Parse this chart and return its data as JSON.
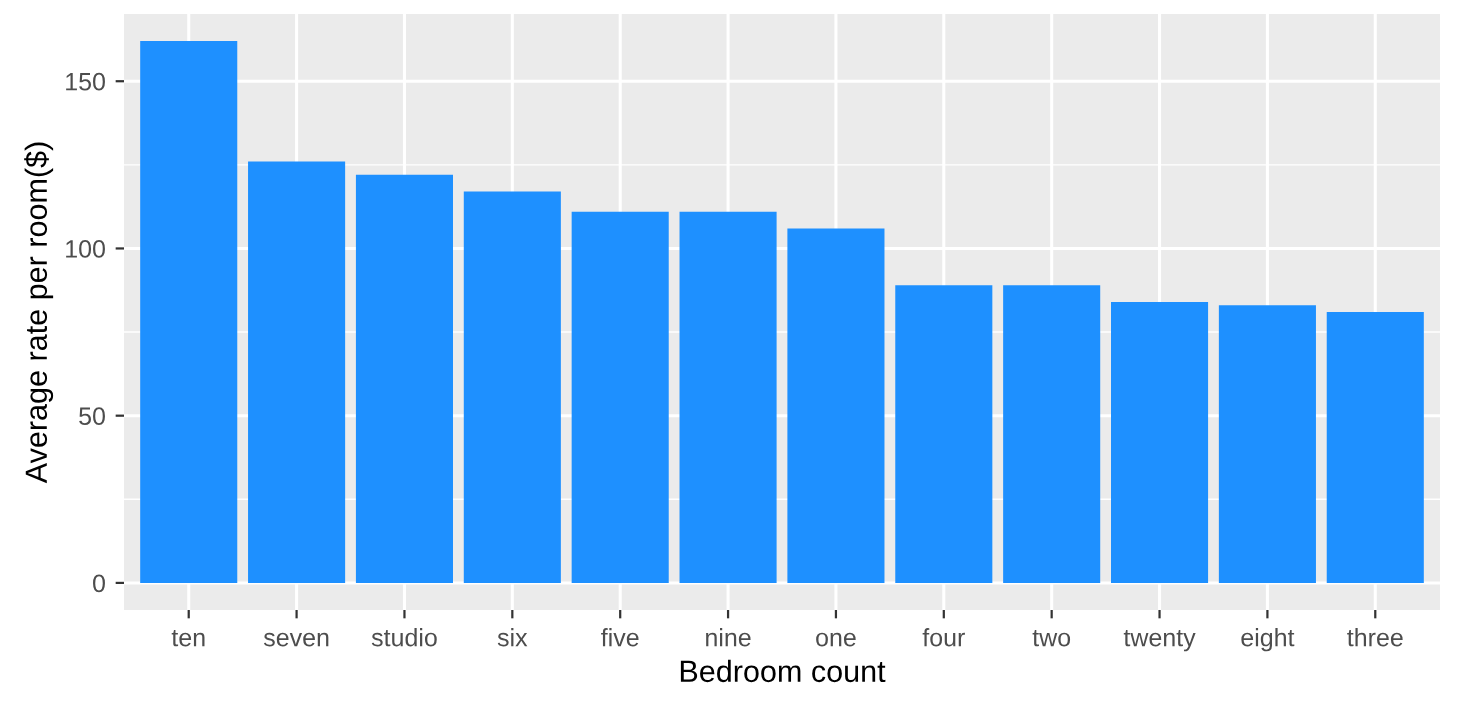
{
  "chart_data": {
    "type": "bar",
    "xlabel": "Bedroom count",
    "ylabel": "Average rate per room($)",
    "categories": [
      "ten",
      "seven",
      "studio",
      "six",
      "five",
      "nine",
      "one",
      "four",
      "two",
      "twenty",
      "eight",
      "three"
    ],
    "values": [
      162,
      126,
      122,
      117,
      111,
      111,
      106,
      89,
      89,
      84,
      83,
      81
    ],
    "color": "#1e90ff",
    "ylim": [
      -8.1,
      170.1
    ],
    "yticks": [
      0,
      50,
      100,
      150
    ],
    "grid": true
  }
}
